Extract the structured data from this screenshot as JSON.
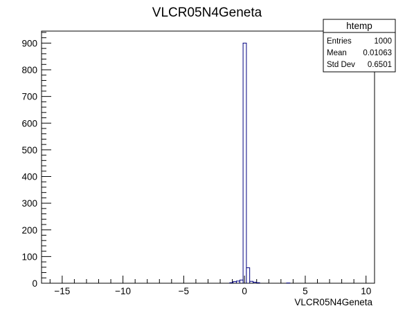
{
  "chart_data": {
    "type": "histogram",
    "title": "VLCR05N4Geneta",
    "xlabel": "VLCR05N4Geneta",
    "ylabel": "",
    "xlim": [
      -16.7,
      10.7
    ],
    "ylim": [
      0,
      945
    ],
    "x_ticks": [
      -15,
      -10,
      -5,
      0,
      5,
      10
    ],
    "y_ticks": [
      0,
      100,
      200,
      300,
      400,
      500,
      600,
      700,
      800,
      900
    ],
    "bin_width": 0.274,
    "line_color": "#000080",
    "bins": [
      {
        "x": -1.07,
        "count": 2
      },
      {
        "x": -0.8,
        "count": 6
      },
      {
        "x": -0.53,
        "count": 8
      },
      {
        "x": -0.25,
        "count": 12
      },
      {
        "x": 0.02,
        "count": 900
      },
      {
        "x": 0.29,
        "count": 58
      },
      {
        "x": 0.57,
        "count": 7
      },
      {
        "x": 0.84,
        "count": 4
      },
      {
        "x": 1.11,
        "count": 2
      },
      {
        "x": 3.6,
        "count": 1
      }
    ],
    "stats_box": {
      "title": "htemp",
      "rows": [
        {
          "label": "Entries",
          "value": "1000"
        },
        {
          "label": "Mean",
          "value": "0.01063"
        },
        {
          "label": "Std Dev",
          "value": "0.6501"
        }
      ]
    }
  }
}
